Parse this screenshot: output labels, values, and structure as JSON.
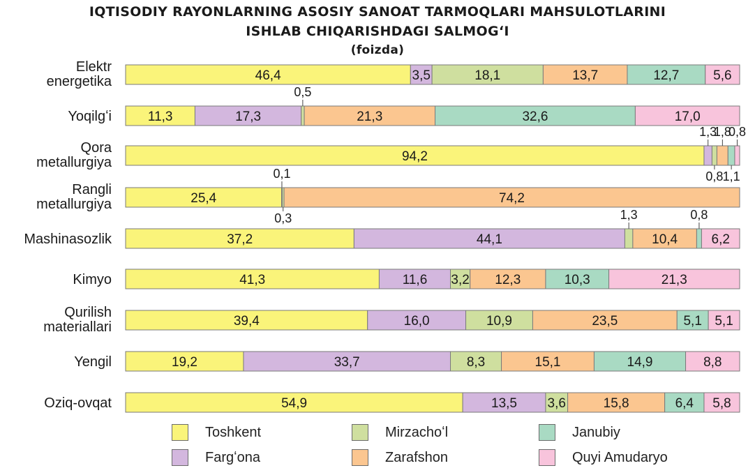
{
  "title_line1": "IQTISODIY RAYONLARNING ASOSIY SANOAT TARMOQLARI MAHSULOTLARINI",
  "title_line2": "ISHLAB CHIQARISHDAGI SALMOGʻI",
  "subtitle": "(foizda)",
  "colors": {
    "Toshkent": "#faf47a",
    "Fargʻona": "#d3b7de",
    "Mirzachoʻl": "#cfdf9f",
    "Zarafshon": "#fbc690",
    "Janubiy": "#a9dac3",
    "Quyi Amudaryo": "#f8c4dc"
  },
  "legend": [
    "Toshkent",
    "Mirzachoʻl",
    "Janubiy",
    "Fargʻona",
    "Zarafshon",
    "Quyi Amudaryo"
  ],
  "chart_data": {
    "type": "bar",
    "orientation": "horizontal",
    "stacked": true,
    "xlim": [
      0,
      100
    ],
    "unit": "foizda",
    "grid": false,
    "legend_position": "bottom",
    "categories": [
      [
        "Elektr",
        "energetika"
      ],
      [
        "Yoqilgʻi"
      ],
      [
        "Qora",
        "metallurgiya"
      ],
      [
        "Rangli",
        "metallurgiya"
      ],
      [
        "Mashinasozlik"
      ],
      [
        "Kimyo"
      ],
      [
        "Qurilish",
        "materiallari"
      ],
      [
        "Yengil"
      ],
      [
        "Oziq-ovqat"
      ]
    ],
    "series": [
      {
        "name": "Toshkent",
        "values": [
          46.4,
          11.3,
          94.2,
          25.4,
          37.2,
          41.3,
          39.4,
          19.2,
          54.9
        ]
      },
      {
        "name": "Fargʻona",
        "values": [
          3.5,
          17.3,
          1.3,
          0.1,
          44.1,
          11.6,
          16.0,
          33.7,
          13.5
        ]
      },
      {
        "name": "Mirzachoʻl",
        "values": [
          18.1,
          0.5,
          0.8,
          0.3,
          1.3,
          3.2,
          10.9,
          8.3,
          3.6
        ]
      },
      {
        "name": "Zarafshon",
        "values": [
          13.7,
          21.3,
          1.8,
          74.2,
          10.4,
          12.3,
          23.5,
          15.1,
          15.8
        ]
      },
      {
        "name": "Janubiy",
        "values": [
          12.7,
          32.6,
          1.1,
          0,
          0.8,
          10.3,
          5.1,
          14.9,
          6.4
        ]
      },
      {
        "name": "Quyi Amudaryo",
        "values": [
          5.6,
          17.0,
          0.8,
          0,
          6.2,
          21.3,
          5.1,
          8.8,
          5.8
        ]
      }
    ],
    "labels": [
      [
        "46,4",
        "3,5",
        "18,1",
        "13,7",
        "12,7",
        "5,6"
      ],
      [
        "11,3",
        "17,3",
        "0,5",
        "21,3",
        "32,6",
        "17,0"
      ],
      [
        "94,2",
        "1,3",
        "0,8",
        "1,8",
        "1,1",
        "0,8"
      ],
      [
        "25,4",
        "0,1",
        "0,3",
        "74,2",
        "",
        ""
      ],
      [
        "37,2",
        "44,1",
        "1,3",
        "10,4",
        "0,8",
        "6,2"
      ],
      [
        "41,3",
        "11,6",
        "3,2",
        "12,3",
        "10,3",
        "21,3"
      ],
      [
        "39,4",
        "16,0",
        "10,9",
        "23,5",
        "5,1",
        "5,1"
      ],
      [
        "19,2",
        "33,7",
        "8,3",
        "15,1",
        "14,9",
        "8,8"
      ],
      [
        "54,9",
        "13,5",
        "3,6",
        "15,8",
        "6,4",
        "5,8"
      ]
    ],
    "callout_side": [
      [
        "",
        "",
        "",
        "",
        "",
        ""
      ],
      [
        "",
        "",
        "above",
        "",
        "",
        ""
      ],
      [
        "",
        "above",
        "below",
        "above",
        "below",
        "above"
      ],
      [
        "",
        "above",
        "below",
        "",
        "",
        ""
      ],
      [
        "",
        "",
        "above",
        "",
        "above",
        ""
      ],
      [
        "",
        "",
        "",
        "",
        "",
        ""
      ],
      [
        "",
        "",
        "",
        "",
        "",
        ""
      ],
      [
        "",
        "",
        "",
        "",
        "",
        ""
      ],
      [
        "",
        "",
        "",
        "",
        "",
        ""
      ]
    ]
  }
}
